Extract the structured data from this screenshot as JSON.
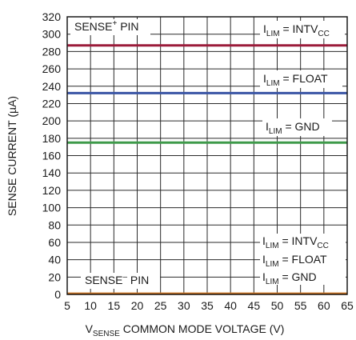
{
  "chart_data": {
    "type": "line",
    "xlabel": {
      "main": "V",
      "sub": "SENSE",
      "rest": " COMMON MODE VOLTAGE (V)"
    },
    "ylabel": "SENSE CURRENT (µA)",
    "xlim": [
      5,
      65
    ],
    "ylim": [
      0,
      320
    ],
    "xticks": [
      "5",
      "10",
      "15",
      "20",
      "25",
      "30",
      "35",
      "40",
      "45",
      "50",
      "55",
      "60",
      "65"
    ],
    "yticks": [
      "0",
      "20",
      "40",
      "60",
      "80",
      "100",
      "120",
      "140",
      "160",
      "180",
      "200",
      "220",
      "240",
      "260",
      "280",
      "300",
      "320"
    ],
    "grid": true,
    "series": [
      {
        "color": "#9b1b3a",
        "x": [
          5,
          65
        ],
        "y": [
          287,
          287
        ]
      },
      {
        "color": "#3a55a5",
        "x": [
          5,
          65
        ],
        "y": [
          232,
          232
        ]
      },
      {
        "color": "#3e9a4a",
        "x": [
          5,
          65
        ],
        "y": [
          175,
          175
        ]
      },
      {
        "color": "#c9701e",
        "x": [
          5,
          65
        ],
        "y": [
          0.8,
          0.8
        ]
      }
    ],
    "annotations": {
      "sense_plus": {
        "main": "SENSE",
        "sup": "+",
        "rest": " PIN"
      },
      "sense_minus": {
        "main": "SENSE",
        "sup": "–",
        "rest": " PIN"
      },
      "ilim_intvcc": {
        "main": "I",
        "sub": "LIM",
        "mid": " = INTV",
        "sub2": "CC"
      },
      "ilim_float": {
        "main": "I",
        "sub": "LIM",
        "mid": " = FLOAT"
      },
      "ilim_gnd": {
        "main": "I",
        "sub": "LIM",
        "mid": " = GND"
      },
      "low_intvcc": {
        "main": "I",
        "sub": "LIM",
        "mid": " = INTV",
        "sub2": "CC"
      },
      "low_float": {
        "main": "I",
        "sub": "LIM",
        "mid": " = FLOAT"
      },
      "low_gnd": {
        "main": "I",
        "sub": "LIM",
        "mid": " = GND"
      }
    }
  }
}
